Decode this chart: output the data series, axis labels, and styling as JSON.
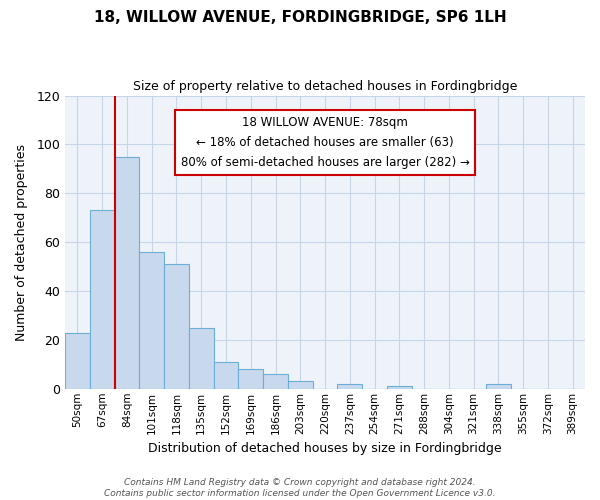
{
  "title": "18, WILLOW AVENUE, FORDINGBRIDGE, SP6 1LH",
  "subtitle": "Size of property relative to detached houses in Fordingbridge",
  "xlabel": "Distribution of detached houses by size in Fordingbridge",
  "ylabel": "Number of detached properties",
  "bin_labels": [
    "50sqm",
    "67sqm",
    "84sqm",
    "101sqm",
    "118sqm",
    "135sqm",
    "152sqm",
    "169sqm",
    "186sqm",
    "203sqm",
    "220sqm",
    "237sqm",
    "254sqm",
    "271sqm",
    "288sqm",
    "304sqm",
    "321sqm",
    "338sqm",
    "355sqm",
    "372sqm",
    "389sqm"
  ],
  "bar_heights": [
    23,
    73,
    95,
    56,
    51,
    25,
    11,
    8,
    6,
    3,
    0,
    2,
    0,
    1,
    0,
    0,
    0,
    2,
    0,
    0,
    0
  ],
  "bar_color": "#c9d9ed",
  "bar_edge_color": "#6baed6",
  "annotation_lines": [
    "18 WILLOW AVENUE: 78sqm",
    "← 18% of detached houses are smaller (63)",
    "80% of semi-detached houses are larger (282) →"
  ],
  "annotation_box_color": "#ffffff",
  "annotation_box_edge_color": "#cc0000",
  "red_line_x": 1.5,
  "ylim": [
    0,
    120
  ],
  "yticks": [
    0,
    20,
    40,
    60,
    80,
    100,
    120
  ],
  "footnote": "Contains HM Land Registry data © Crown copyright and database right 2024.\nContains public sector information licensed under the Open Government Licence v3.0.",
  "bg_color": "#ffffff",
  "plot_bg_color": "#eef3f9",
  "grid_color": "#c8d4e8"
}
